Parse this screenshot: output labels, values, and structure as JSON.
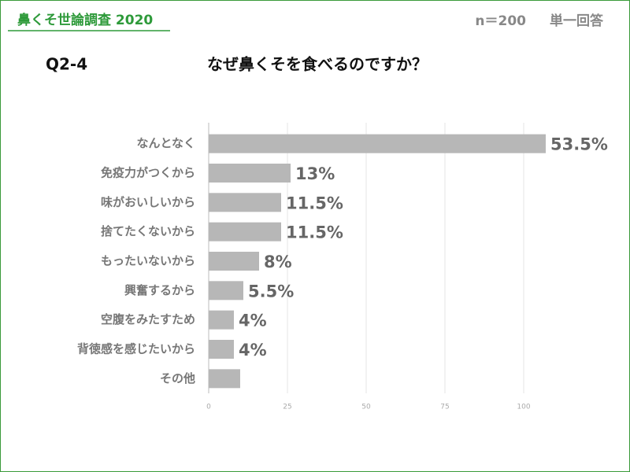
{
  "header": {
    "title": "鼻くそ世論調査 2020",
    "sample": "n＝200",
    "answer_type": "単一回答"
  },
  "chart_data": {
    "type": "bar",
    "orientation": "horizontal",
    "question_id": "Q2-4",
    "title": "なぜ鼻くそを食べるのですか？",
    "categories": [
      "なんとなく",
      "免疫力がつくから",
      "味がおいしいから",
      "捨てたくないから",
      "もったいないから",
      "興奮するから",
      "空腹をみたすため",
      "背徳感を感じたいから",
      "その他"
    ],
    "values": [
      107,
      26,
      23,
      23,
      16,
      11,
      8,
      8,
      10
    ],
    "value_labels": [
      "53.5%",
      "13%",
      "11.5%",
      "11.5%",
      "8%",
      "5.5%",
      "4%",
      "4%",
      null
    ],
    "color": "#b7b7b7",
    "xlim": [
      0,
      107
    ],
    "xticks": [
      0,
      25,
      50,
      75,
      100
    ],
    "grid": true
  }
}
